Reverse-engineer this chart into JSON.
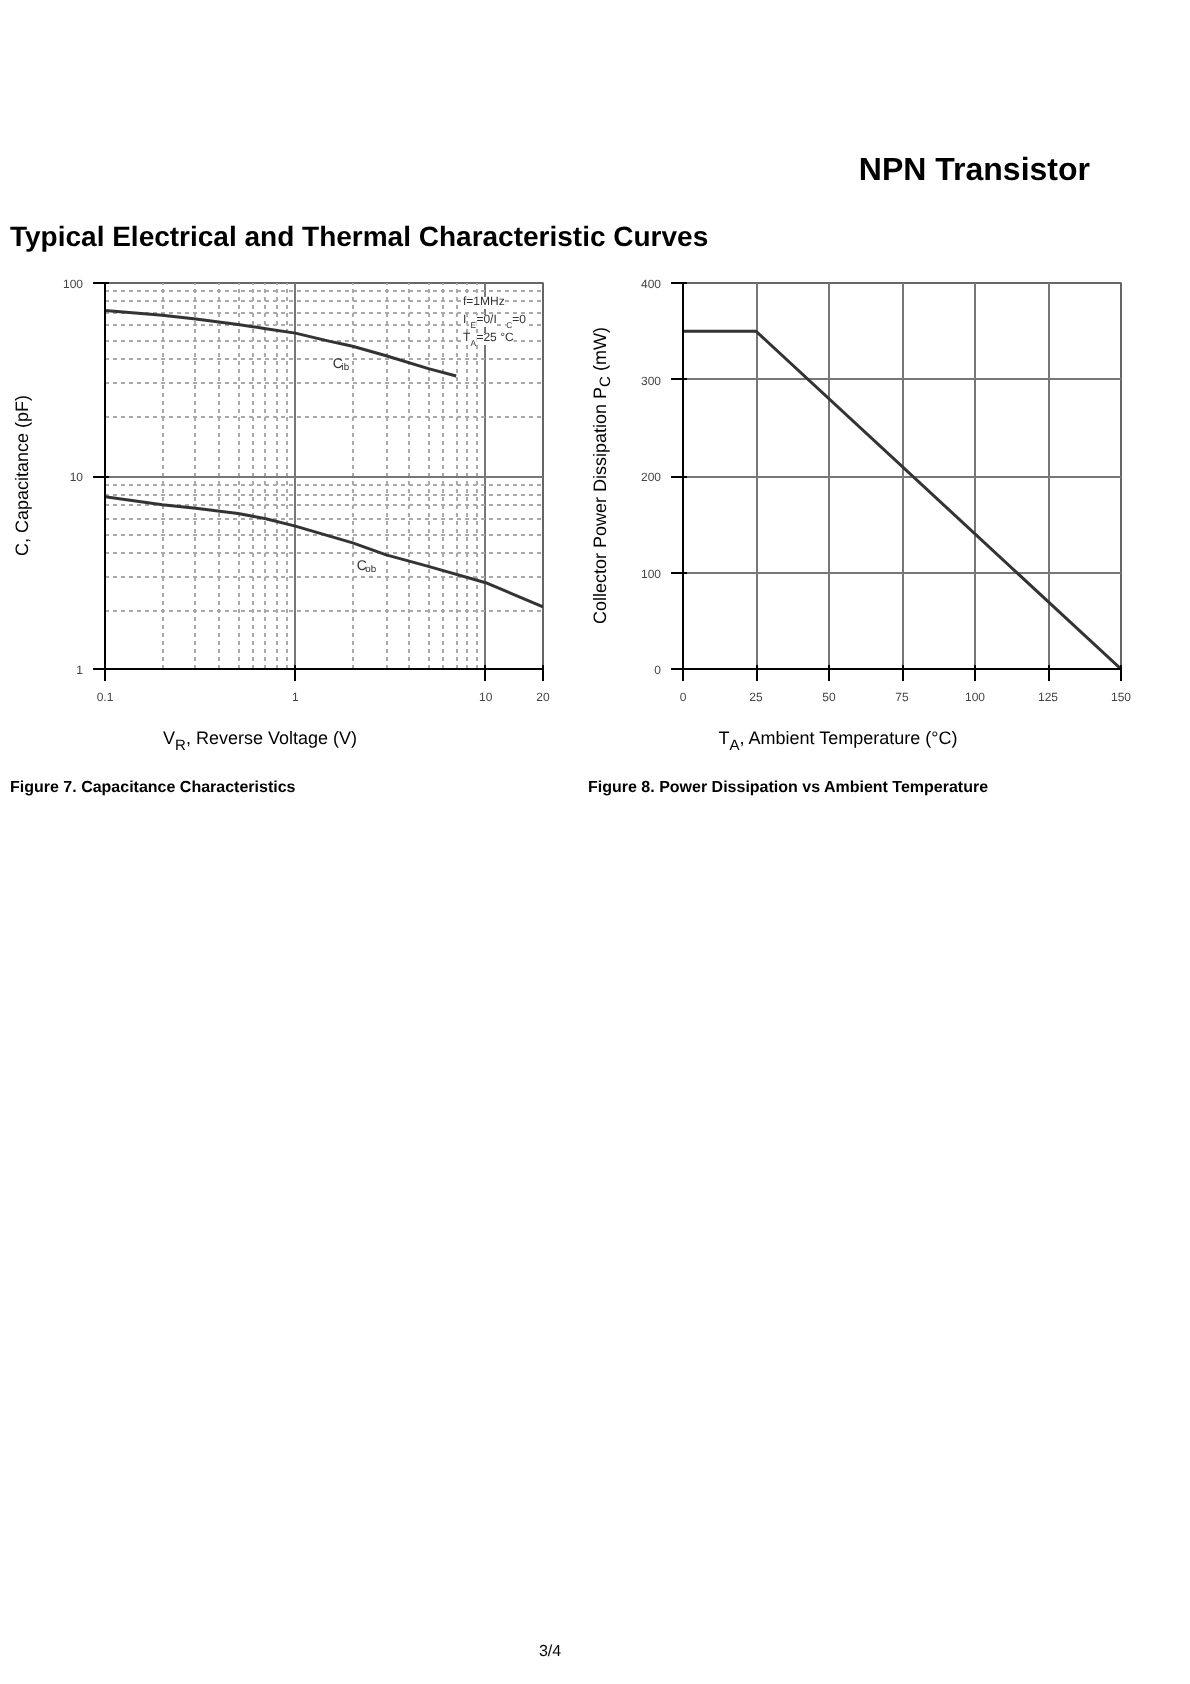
{
  "chart_data": [
    {
      "type": "line",
      "title": "Figure 7. Capacitance Characteristics",
      "subtitle": "Typical Electrical and Thermal Characteristic Curves",
      "xlabel": "V$_{R}$, Reverse Voltage (V)",
      "ylabel": "C, Capacitance (pF)",
      "log": "xy",
      "xlim": [
        0.1,
        20
      ],
      "ylim": [
        1,
        100
      ],
      "xticks": [
        0.1,
        1,
        10,
        20
      ],
      "yticks": [
        1,
        10,
        100
      ],
      "grid": true,
      "annotations": [
        "f=1MHz",
        "I$_{E}$=0/I$_{C}$=0",
        "T$_{A}$=25 °C"
      ],
      "series": [
        {
          "name": "C$_{ib}$",
          "color": "#333333",
          "x": [
            0.1,
            0.2,
            0.3,
            0.5,
            0.7,
            1,
            1.5,
            2,
            3,
            5,
            7
          ],
          "values": [
            72,
            68,
            65,
            61,
            58,
            55,
            50,
            47,
            42,
            36,
            33
          ]
        },
        {
          "name": "C$_{ob}$",
          "color": "#333333",
          "x": [
            0.1,
            0.2,
            0.3,
            0.5,
            0.7,
            1,
            2,
            3,
            5,
            10,
            20
          ],
          "values": [
            7.8,
            7.1,
            6.8,
            6.4,
            6.0,
            5.5,
            4.5,
            3.9,
            3.4,
            2.8,
            2.1
          ]
        }
      ]
    },
    {
      "type": "line",
      "title": "Figure 8. Power Dissipation vs Ambient Temperature",
      "xlabel": "T$_{A}$, Ambient Temperature (°C)",
      "ylabel": "Collector Power Dissipation P$_{C}$ (mW)",
      "xlim": [
        0,
        150
      ],
      "ylim": [
        0,
        400
      ],
      "xticks": [
        0,
        25,
        50,
        75,
        100,
        125,
        150
      ],
      "yticks": [
        0,
        100,
        200,
        300,
        400
      ],
      "grid": true,
      "annotations": [
        "NPN Transistor",
        "3/4"
      ],
      "series": [
        {
          "color": "#333333",
          "x": [
            0,
            25,
            150
          ],
          "values": [
            350,
            350,
            0
          ]
        }
      ]
    }
  ]
}
